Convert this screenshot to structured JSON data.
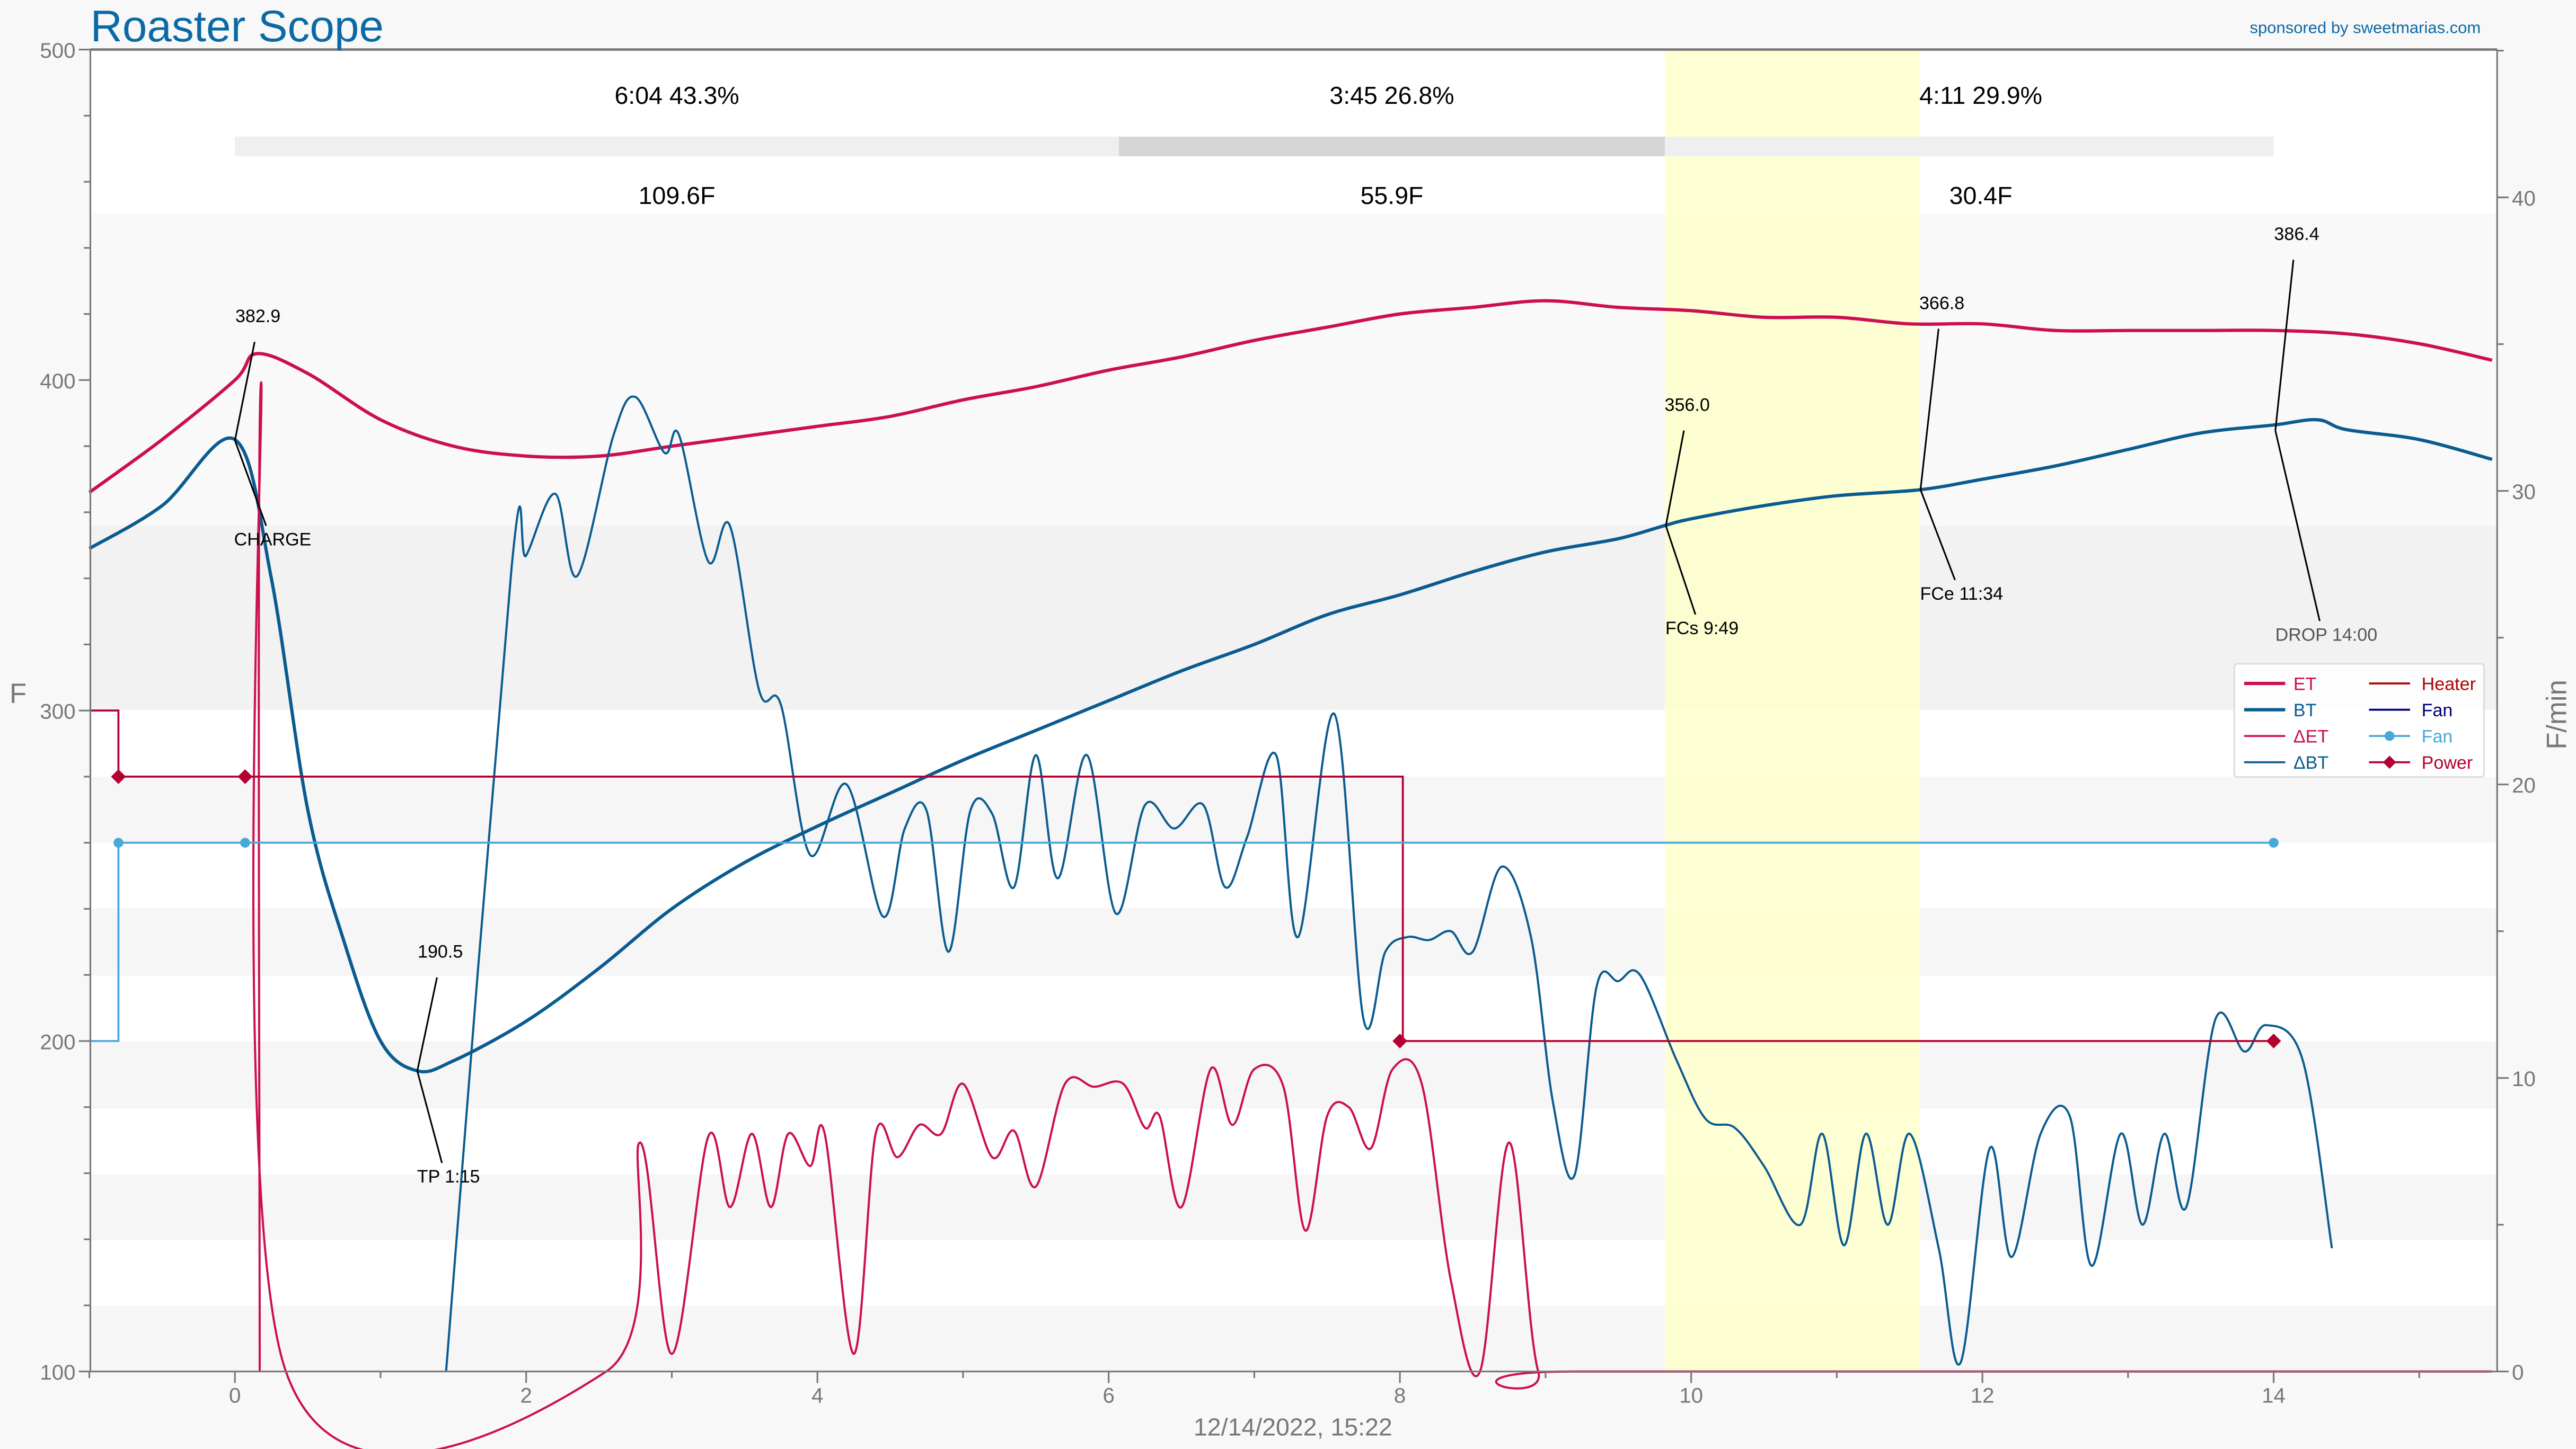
{
  "header": {
    "title": "Roaster Scope",
    "sponsor": "sponsored by sweetmarias.com"
  },
  "colors": {
    "brand": "#0b6aa6",
    "et": "#cc0f50",
    "bt": "#0a5c90",
    "det": "#cc0f50",
    "dbt": "#0a5c90",
    "heater": "#b40000",
    "fan_legend": "#00007c",
    "fan": "#4aa8d8",
    "power": "#b40030",
    "phase_highlight": "#ffffcc"
  },
  "chart_data": {
    "type": "line",
    "title": "Roaster Scope",
    "xlabel": "12/14/2022, 15:22",
    "ylabel": "F",
    "y2label": "F/min",
    "xlim": [
      -1,
      15.5
    ],
    "ylim": [
      100,
      500
    ],
    "y2lim": [
      0,
      45
    ],
    "xticks": [
      "0",
      "2",
      "4",
      "6",
      "8",
      "10",
      "12",
      "14"
    ],
    "yticks": [
      "100",
      "200",
      "300",
      "400",
      "500"
    ],
    "y2ticks": [
      "0",
      "10",
      "20",
      "30",
      "40"
    ],
    "grid": false,
    "legend_position": "center-right",
    "legend": [
      "ET",
      "BT",
      "ΔET",
      "ΔBT",
      "Heater",
      "Fan",
      "Fan",
      "Power"
    ],
    "phases": [
      {
        "time": "6:04",
        "pct": "43.3%",
        "delta": "109.6F",
        "start": 0,
        "end": 6.07
      },
      {
        "time": "3:45",
        "pct": "26.8%",
        "delta": "55.9F",
        "start": 6.07,
        "end": 9.82
      },
      {
        "time": "4:11",
        "pct": "29.9%",
        "delta": "30.4F",
        "start": 9.82,
        "end": 14
      }
    ],
    "highlight": {
      "start": 9.82,
      "end": 11.57
    },
    "series": [
      {
        "name": "ET",
        "axis": "left",
        "x": [
          -1,
          -0.5,
          0,
          0.15,
          0.5,
          1,
          1.5,
          2,
          2.5,
          3,
          3.5,
          4,
          4.5,
          5,
          5.5,
          6,
          6.5,
          7,
          7.5,
          8,
          8.5,
          9,
          9.5,
          10,
          10.5,
          11,
          11.5,
          12,
          12.5,
          13,
          13.5,
          14,
          14.5,
          15,
          15.5
        ],
        "y": [
          366,
          382,
          400,
          408,
          402,
          388,
          380,
          377,
          377,
          380,
          383,
          386,
          389,
          394,
          398,
          403,
          407,
          412,
          416,
          420,
          422,
          424,
          422,
          421,
          419,
          419,
          417,
          417,
          415,
          415,
          415,
          415,
          414,
          411,
          406
        ]
      },
      {
        "name": "BT",
        "axis": "left",
        "x": [
          -1,
          -0.5,
          0,
          0.25,
          0.5,
          0.75,
          1,
          1.25,
          1.5,
          2,
          2.5,
          3,
          3.5,
          4,
          4.5,
          5,
          5.5,
          6,
          6.5,
          7,
          7.5,
          8,
          8.5,
          9,
          9.5,
          9.82,
          10,
          10.5,
          11,
          11.57,
          12,
          12.5,
          13,
          13.5,
          14,
          14.3,
          14.5,
          15,
          15.5
        ],
        "y": [
          349,
          362,
          382,
          340,
          270,
          230,
          200,
          191,
          194,
          206,
          222,
          240,
          254,
          265,
          275,
          285,
          294,
          303,
          312,
          320,
          329,
          335,
          342,
          348,
          352,
          356,
          358,
          362,
          365,
          366.8,
          370,
          374,
          379,
          384,
          386.4,
          388,
          385,
          382,
          376
        ]
      },
      {
        "name": "ΔET",
        "axis": "right",
        "x": [
          0.17,
          0.18,
          0.35,
          2.55,
          2.78,
          3.0,
          3.25,
          3.4,
          3.55,
          3.68,
          3.8,
          3.95,
          4.05,
          4.25,
          4.4,
          4.55,
          4.7,
          4.85,
          5.0,
          5.2,
          5.35,
          5.5,
          5.7,
          5.9,
          6.1,
          6.25,
          6.35,
          6.5,
          6.7,
          6.85,
          7.0,
          7.2,
          7.35,
          7.5,
          7.65,
          7.8,
          7.95,
          8.15,
          8.35,
          8.55,
          8.75,
          8.95,
          9.2,
          15.5
        ],
        "y": [
          0,
          33.7,
          0,
          0,
          7.8,
          0.6,
          8.0,
          5.6,
          8.1,
          5.6,
          8.1,
          7.0,
          8.1,
          0.6,
          8.1,
          7.3,
          8.4,
          8.1,
          9.8,
          7.3,
          8.2,
          6.3,
          9.8,
          9.7,
          9.8,
          8.3,
          8.7,
          5.6,
          10.3,
          8.4,
          10.3,
          9.7,
          4.8,
          8.7,
          9.0,
          7.6,
          10.3,
          9.8,
          3.1,
          0,
          7.8,
          0,
          0,
          0
        ]
      },
      {
        "name": "ΔBT",
        "axis": "right",
        "x": [
          1.45,
          1.9,
          2.0,
          2.2,
          2.35,
          2.6,
          2.75,
          2.95,
          3.05,
          3.25,
          3.4,
          3.6,
          3.75,
          3.95,
          4.2,
          4.45,
          4.6,
          4.75,
          4.9,
          5.05,
          5.2,
          5.35,
          5.5,
          5.65,
          5.85,
          6.05,
          6.25,
          6.45,
          6.65,
          6.8,
          6.95,
          7.15,
          7.3,
          7.55,
          7.75,
          7.9,
          8.05,
          8.2,
          8.35,
          8.5,
          8.7,
          8.9,
          9.05,
          9.2,
          9.35,
          9.5,
          9.65,
          9.9,
          10.1,
          10.3,
          10.5,
          10.75,
          10.9,
          11.05,
          11.2,
          11.35,
          11.5,
          11.7,
          11.85,
          12.05,
          12.2,
          12.4,
          12.6,
          12.75,
          12.95,
          13.1,
          13.25,
          13.4,
          13.6,
          13.8,
          13.95,
          14.2,
          14.4
        ],
        "y": [
          0,
          27.4,
          27.8,
          29.9,
          27.1,
          31.9,
          33.2,
          31.3,
          31.9,
          27.6,
          28.8,
          23.2,
          22.7,
          17.6,
          20.0,
          15.5,
          18.5,
          19.1,
          14.3,
          19.1,
          19.0,
          16.5,
          21.0,
          16.8,
          21.0,
          15.6,
          19.3,
          18.5,
          19.3,
          16.5,
          18.2,
          21.0,
          14.8,
          22.4,
          12.0,
          14.3,
          14.8,
          14.7,
          15.0,
          14.3,
          17.2,
          14.8,
          9.2,
          6.7,
          13.1,
          13.3,
          13.5,
          10.6,
          8.6,
          8.3,
          7.0,
          5.0,
          8.1,
          4.3,
          8.1,
          5.0,
          8.1,
          4.2,
          0.3,
          7.6,
          3.9,
          8.1,
          8.7,
          3.6,
          8.1,
          5.0,
          8.1,
          5.6,
          12.0,
          10.9,
          11.8,
          10.6,
          4.2
        ]
      },
      {
        "name": "Heater",
        "axis": "left",
        "x": [
          -1,
          -0.8,
          -0.8,
          8.02,
          8.02,
          14
        ],
        "y": [
          300,
          300,
          280,
          280,
          200,
          200
        ]
      },
      {
        "name": "Fan",
        "axis": "left",
        "x": [
          -1,
          -0.8,
          -0.8,
          14
        ],
        "y": [
          200,
          200,
          260,
          260
        ],
        "markers": [
          -0.8,
          0.07,
          14
        ]
      },
      {
        "name": "Power",
        "axis": "left",
        "points": [
          [
            -0.8,
            280
          ],
          [
            0.07,
            280
          ],
          [
            8.0,
            200
          ],
          [
            14,
            200
          ]
        ]
      }
    ],
    "annotations": [
      {
        "value": "382.9",
        "event": "CHARGE",
        "x": 0,
        "y": 382
      },
      {
        "value": "190.5",
        "event": "TP 1:15",
        "x": 1.25,
        "y": 191
      },
      {
        "value": "356.0",
        "event": "FCs 9:49",
        "x": 9.82,
        "y": 356
      },
      {
        "value": "366.8",
        "event": "FCe 11:34",
        "x": 11.57,
        "y": 366.8
      },
      {
        "value": "386.4",
        "event": "DROP 14:00",
        "x": 14,
        "y": 386.4
      }
    ]
  }
}
